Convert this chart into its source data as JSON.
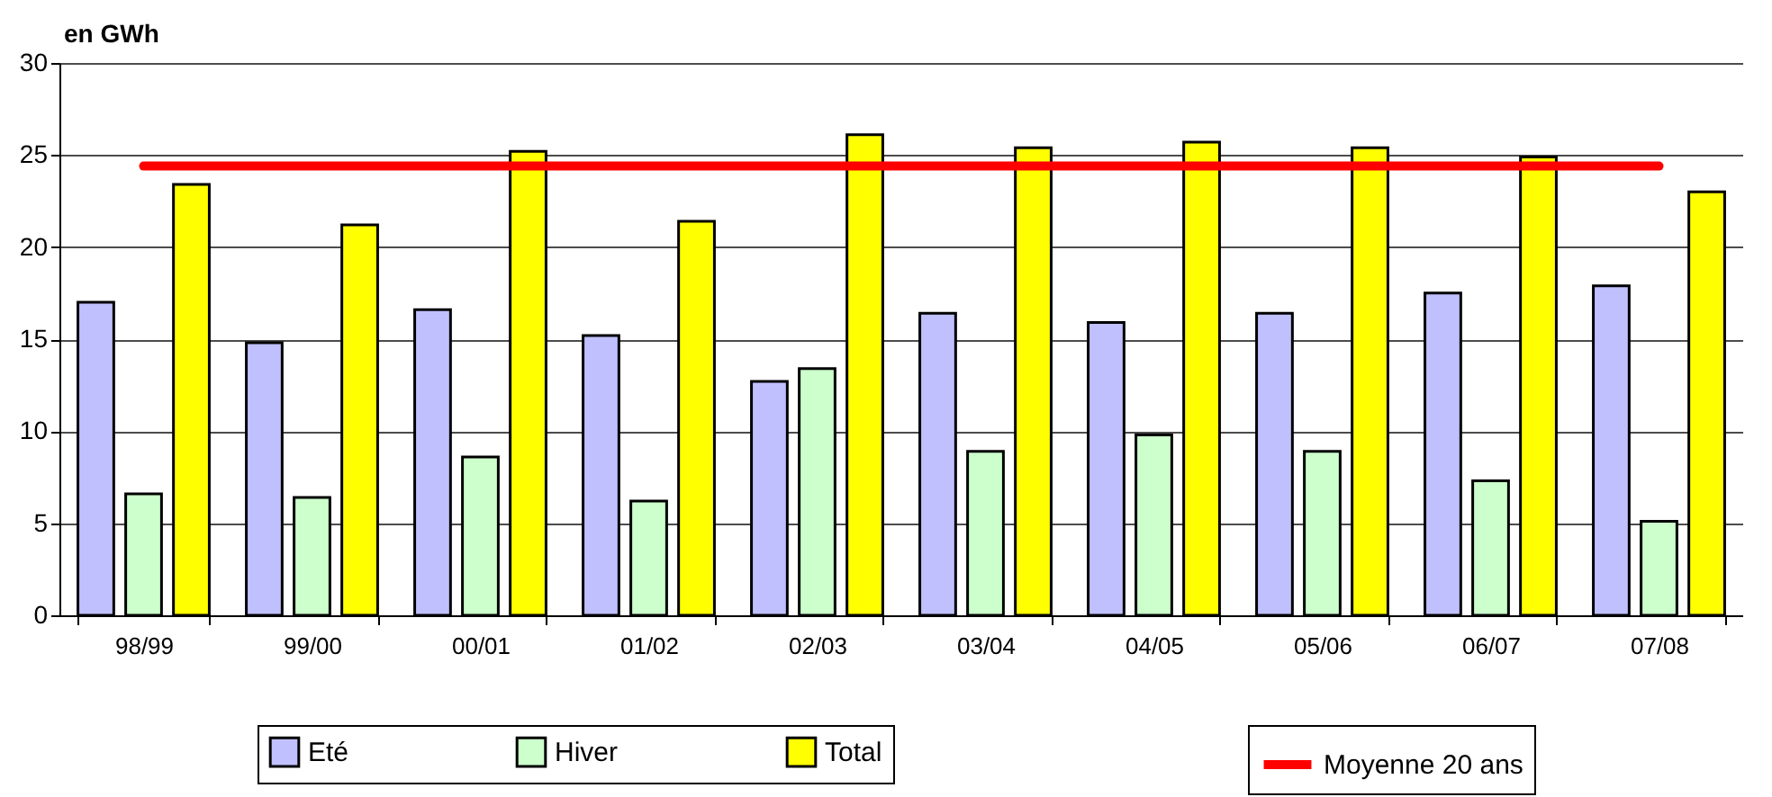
{
  "chart_data": {
    "type": "bar",
    "ylabel": "en GWh",
    "categories": [
      "98/99",
      "99/00",
      "00/01",
      "01/02",
      "02/03",
      "03/04",
      "04/05",
      "05/06",
      "06/07",
      "07/08"
    ],
    "series": [
      {
        "name": "Eté",
        "color": "#c0c0ff",
        "values": [
          17.0,
          14.8,
          16.6,
          15.2,
          12.7,
          16.4,
          15.9,
          16.4,
          17.5,
          17.9
        ]
      },
      {
        "name": "Hiver",
        "color": "#ccffcc",
        "values": [
          6.6,
          6.4,
          8.6,
          6.2,
          13.4,
          8.9,
          9.8,
          8.9,
          7.3,
          5.1
        ]
      },
      {
        "name": "Total",
        "color": "#ffff00",
        "values": [
          23.4,
          21.2,
          25.2,
          21.4,
          26.1,
          25.4,
          25.7,
          25.4,
          24.9,
          23.0
        ]
      },
      {
        "name": "Moyenne 20 ans",
        "type": "line",
        "color": "#ff0000",
        "values": [
          24.4,
          24.4,
          24.4,
          24.4,
          24.4,
          24.4,
          24.4,
          24.4,
          24.4,
          24.4
        ]
      }
    ],
    "ylim": [
      0,
      30
    ],
    "yticks": [
      0,
      5,
      10,
      15,
      20,
      25,
      30
    ],
    "grid": "y",
    "legend": "bottom"
  }
}
